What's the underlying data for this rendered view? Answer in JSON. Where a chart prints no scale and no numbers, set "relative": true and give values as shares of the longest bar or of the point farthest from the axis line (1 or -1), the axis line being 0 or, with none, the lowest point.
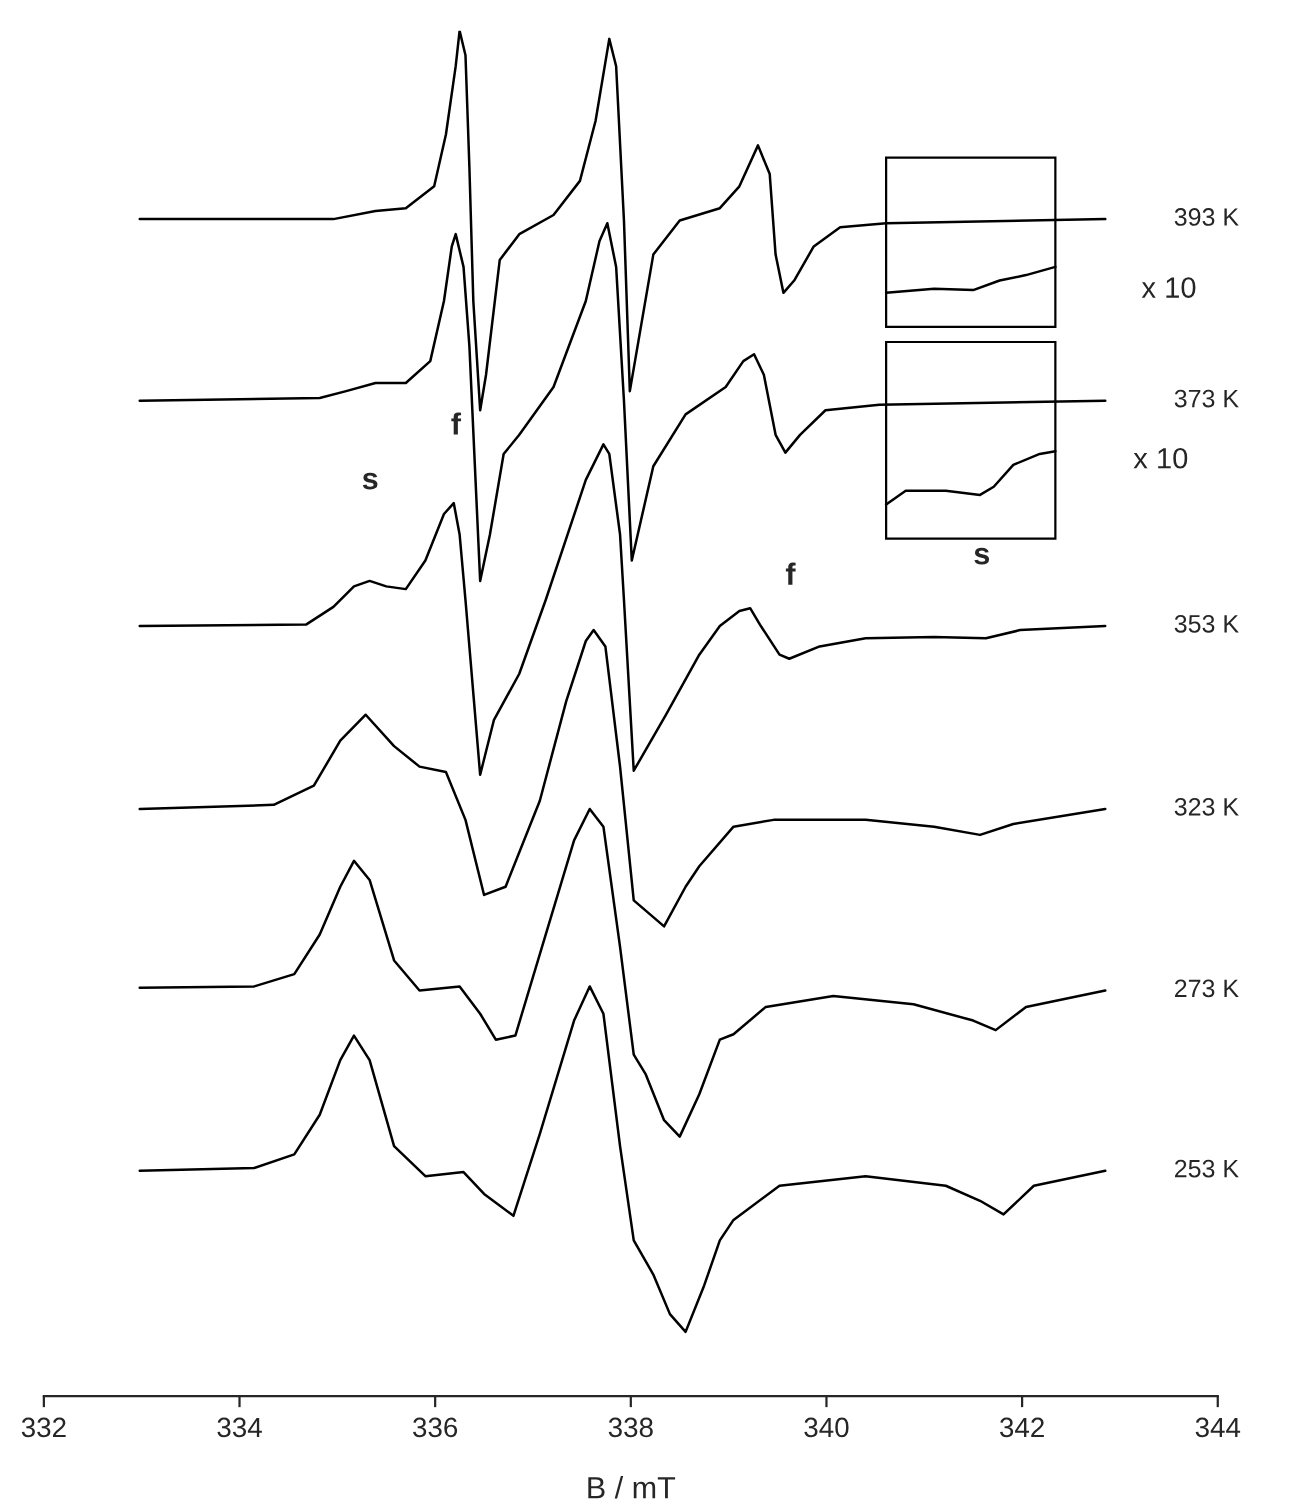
{
  "chart_data": {
    "type": "line",
    "relative": true,
    "xlabel": "B / mT",
    "xlim": [
      332,
      344
    ],
    "xticks": [
      332,
      334,
      336,
      338,
      340,
      342,
      344
    ],
    "grid": false,
    "legend": false,
    "tick_labels": "x",
    "line_style": "solid",
    "marker": "none",
    "series": [
      {
        "name": "393 K",
        "color": "#000000",
        "x": [
          332.98,
          334.96,
          335.39,
          335.7,
          335.99,
          336.11,
          336.21,
          336.25,
          336.31,
          336.35,
          336.39,
          336.46,
          336.52,
          336.66,
          336.86,
          337.21,
          337.48,
          337.64,
          337.78,
          337.85,
          337.93,
          337.99,
          338.23,
          338.5,
          338.91,
          339.11,
          339.3,
          339.42,
          339.48,
          339.56,
          339.67,
          339.87,
          340.14,
          340.61,
          342.85
        ],
        "values": [
          0.862,
          0.862,
          0.868,
          0.87,
          0.886,
          0.924,
          0.974,
          1.0,
          0.982,
          0.9,
          0.802,
          0.722,
          0.748,
          0.832,
          0.851,
          0.865,
          0.89,
          0.934,
          0.994,
          0.974,
          0.861,
          0.736,
          0.836,
          0.861,
          0.87,
          0.886,
          0.916,
          0.895,
          0.836,
          0.808,
          0.817,
          0.842,
          0.856,
          0.859,
          0.862
        ]
      },
      {
        "name": "373 K",
        "color": "#000000",
        "x": [
          332.98,
          334.82,
          335.09,
          335.39,
          335.7,
          335.95,
          336.09,
          336.17,
          336.21,
          336.29,
          336.35,
          336.46,
          336.56,
          336.7,
          336.86,
          337.21,
          337.54,
          337.68,
          337.76,
          337.85,
          337.93,
          338.01,
          338.23,
          338.56,
          338.97,
          339.15,
          339.26,
          339.36,
          339.48,
          339.58,
          339.73,
          339.99,
          340.54,
          342.85
        ],
        "values": [
          0.729,
          0.731,
          0.736,
          0.742,
          0.742,
          0.758,
          0.802,
          0.842,
          0.851,
          0.827,
          0.769,
          0.597,
          0.631,
          0.69,
          0.704,
          0.739,
          0.802,
          0.846,
          0.859,
          0.827,
          0.729,
          0.612,
          0.681,
          0.719,
          0.739,
          0.758,
          0.763,
          0.748,
          0.704,
          0.691,
          0.704,
          0.722,
          0.726,
          0.729
        ]
      },
      {
        "name": "353 K",
        "color": "#000000",
        "x": [
          332.98,
          334.68,
          334.96,
          335.17,
          335.33,
          335.5,
          335.7,
          335.9,
          336.09,
          336.19,
          336.25,
          336.31,
          336.46,
          336.6,
          336.86,
          337.13,
          337.54,
          337.72,
          337.78,
          337.89,
          337.93,
          338.03,
          338.36,
          338.7,
          338.91,
          339.11,
          339.22,
          339.32,
          339.52,
          339.62,
          339.93,
          340.4,
          341.1,
          341.63,
          341.98,
          342.85
        ],
        "values": [
          0.564,
          0.565,
          0.578,
          0.593,
          0.597,
          0.593,
          0.591,
          0.612,
          0.646,
          0.654,
          0.631,
          0.583,
          0.455,
          0.495,
          0.529,
          0.583,
          0.671,
          0.697,
          0.69,
          0.631,
          0.583,
          0.458,
          0.499,
          0.543,
          0.564,
          0.575,
          0.577,
          0.565,
          0.543,
          0.54,
          0.549,
          0.555,
          0.556,
          0.555,
          0.561,
          0.564
        ]
      },
      {
        "name": "323 K",
        "color": "#000000",
        "x": [
          332.98,
          334.35,
          334.76,
          335.03,
          335.29,
          335.58,
          335.84,
          336.11,
          336.31,
          336.5,
          336.72,
          337.07,
          337.34,
          337.54,
          337.62,
          337.74,
          337.89,
          338.03,
          338.34,
          338.56,
          338.7,
          339.05,
          339.46,
          340.4,
          341.1,
          341.57,
          341.91,
          342.85
        ],
        "values": [
          0.43,
          0.433,
          0.447,
          0.48,
          0.499,
          0.476,
          0.461,
          0.457,
          0.422,
          0.367,
          0.373,
          0.436,
          0.509,
          0.553,
          0.561,
          0.549,
          0.461,
          0.363,
          0.344,
          0.373,
          0.388,
          0.417,
          0.422,
          0.422,
          0.417,
          0.411,
          0.419,
          0.43
        ]
      },
      {
        "name": "273 K",
        "color": "#000000",
        "x": [
          332.98,
          334.15,
          334.56,
          334.82,
          335.03,
          335.17,
          335.33,
          335.58,
          335.84,
          336.25,
          336.46,
          336.62,
          336.82,
          337.13,
          337.42,
          337.58,
          337.72,
          337.89,
          338.03,
          338.15,
          338.34,
          338.5,
          338.7,
          338.91,
          339.05,
          339.38,
          340.07,
          340.89,
          341.5,
          341.73,
          342.04,
          342.85
        ],
        "values": [
          0.299,
          0.3,
          0.309,
          0.338,
          0.373,
          0.392,
          0.378,
          0.319,
          0.297,
          0.3,
          0.28,
          0.261,
          0.264,
          0.338,
          0.407,
          0.43,
          0.417,
          0.329,
          0.25,
          0.236,
          0.202,
          0.19,
          0.221,
          0.261,
          0.265,
          0.285,
          0.293,
          0.287,
          0.275,
          0.268,
          0.285,
          0.297
        ]
      },
      {
        "name": "253 K",
        "color": "#000000",
        "x": [
          332.98,
          334.15,
          334.56,
          334.82,
          335.03,
          335.17,
          335.33,
          335.58,
          335.9,
          336.29,
          336.5,
          336.8,
          337.07,
          337.42,
          337.58,
          337.72,
          337.89,
          338.03,
          338.23,
          338.4,
          338.56,
          338.75,
          338.91,
          339.05,
          339.52,
          340.4,
          341.22,
          341.57,
          341.81,
          342.12,
          342.85
        ],
        "values": [
          0.165,
          0.167,
          0.177,
          0.206,
          0.246,
          0.264,
          0.246,
          0.183,
          0.161,
          0.164,
          0.148,
          0.132,
          0.192,
          0.275,
          0.3,
          0.28,
          0.183,
          0.114,
          0.089,
          0.06,
          0.047,
          0.081,
          0.114,
          0.129,
          0.154,
          0.161,
          0.154,
          0.143,
          0.133,
          0.154,
          0.165
        ]
      },
      {
        "color": "#000000",
        "x": [
          340.61,
          341.1,
          341.5,
          341.77,
          342.04,
          342.34
        ],
        "values": [
          0.808,
          0.811,
          0.81,
          0.817,
          0.821,
          0.827
        ]
      },
      {
        "color": "#000000",
        "x": [
          340.61,
          340.81,
          341.22,
          341.57,
          341.71,
          341.91,
          342.18,
          342.34
        ],
        "values": [
          0.653,
          0.663,
          0.663,
          0.66,
          0.666,
          0.682,
          0.69,
          0.692
        ]
      }
    ],
    "annotations": [
      "s",
      "f",
      "f",
      "s",
      "x 10",
      "x 10"
    ]
  }
}
